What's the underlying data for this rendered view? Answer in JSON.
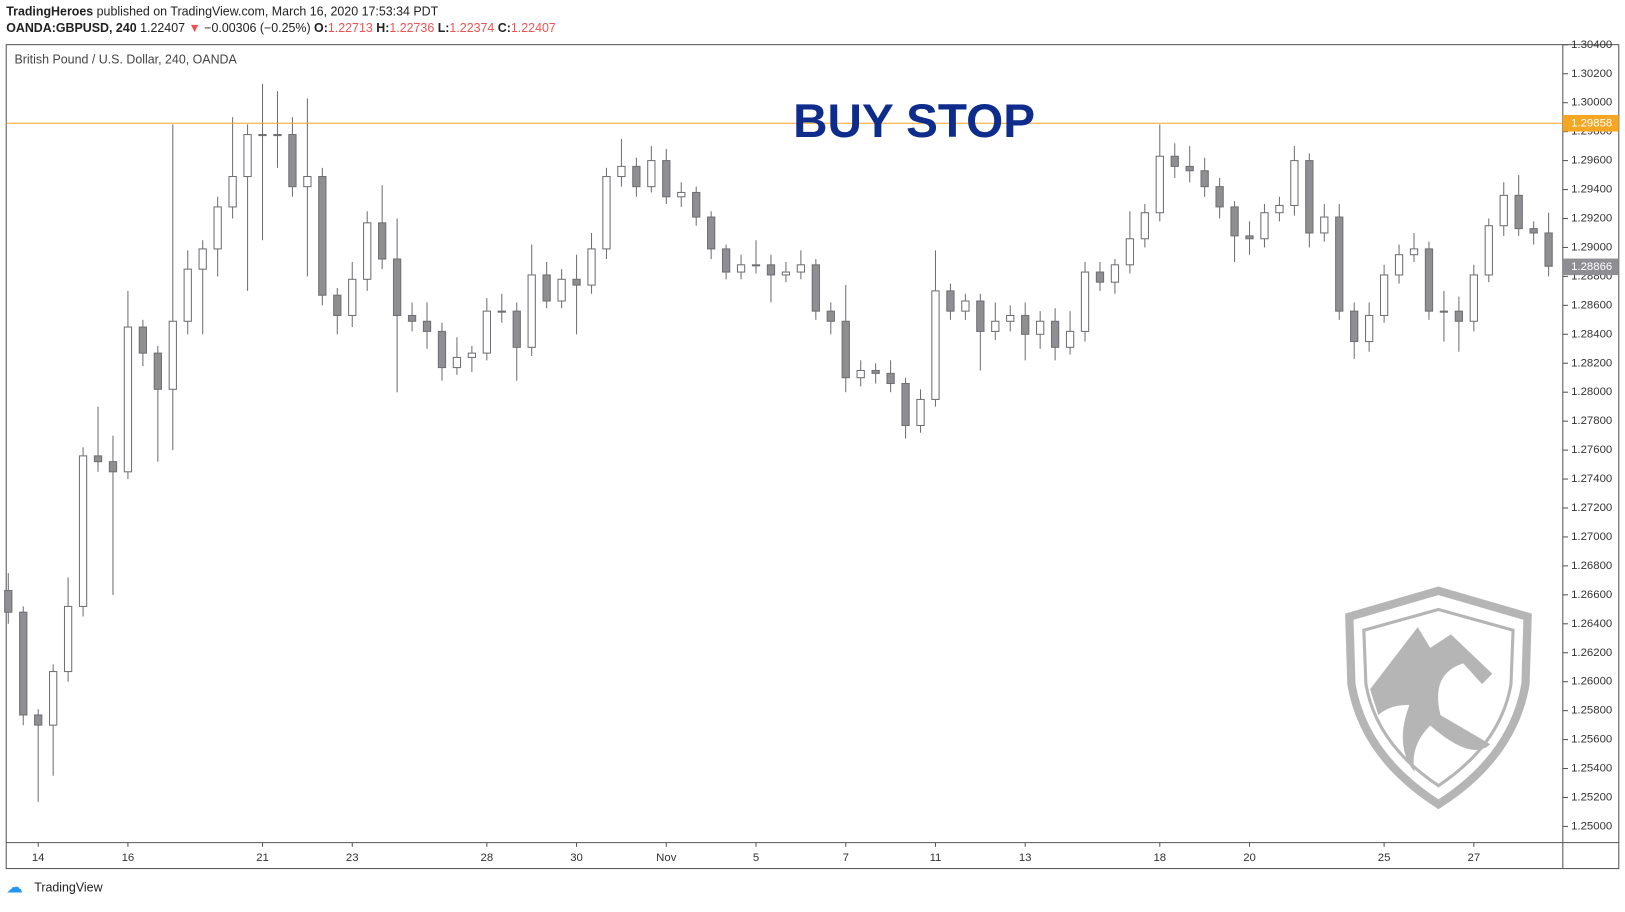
{
  "header": {
    "author": "TradingHeroes",
    "published": "published on TradingView.com, March 16, 2020 17:53:34 PDT",
    "symbol": "OANDA:GBPUSD, 240",
    "price": "1.22407",
    "change_arrow": "▼",
    "change": "−0.00306 (−0.25%)",
    "ohlc": [
      {
        "label": "O:",
        "value": "1.22713"
      },
      {
        "label": "H:",
        "value": "1.22736"
      },
      {
        "label": "L:",
        "value": "1.22374"
      },
      {
        "label": "C:",
        "value": "1.22407"
      }
    ]
  },
  "footer": {
    "brand": "TradingView"
  },
  "chart_data": {
    "type": "candlestick",
    "title": "British Pound / U.S. Dollar, 240, OANDA",
    "annotation": "BUY STOP",
    "up_color": "#ffffff",
    "down_color": "#8e8e93",
    "wick_color": "#6f6f74",
    "grid": false,
    "buy_stop": {
      "value": 1.29858,
      "label": "1.29858",
      "color": "#f5a623"
    },
    "last_price": {
      "value": 1.28866,
      "label": "1.28866",
      "color": "#8e8e93"
    },
    "ylim": [
      1.24888,
      1.30401
    ],
    "yticks": [
      {
        "value": 1.25,
        "label": "1.25000"
      },
      {
        "value": 1.252,
        "label": "1.25200"
      },
      {
        "value": 1.254,
        "label": "1.25400"
      },
      {
        "value": 1.256,
        "label": "1.25600"
      },
      {
        "value": 1.258,
        "label": "1.25800"
      },
      {
        "value": 1.26,
        "label": "1.26000"
      },
      {
        "value": 1.262,
        "label": "1.26200"
      },
      {
        "value": 1.264,
        "label": "1.26400"
      },
      {
        "value": 1.266,
        "label": "1.26600"
      },
      {
        "value": 1.268,
        "label": "1.26800"
      },
      {
        "value": 1.27,
        "label": "1.27000"
      },
      {
        "value": 1.272,
        "label": "1.27200"
      },
      {
        "value": 1.274,
        "label": "1.27400"
      },
      {
        "value": 1.276,
        "label": "1.27600"
      },
      {
        "value": 1.278,
        "label": "1.27800"
      },
      {
        "value": 1.28,
        "label": "1.28000"
      },
      {
        "value": 1.282,
        "label": "1.28200"
      },
      {
        "value": 1.284,
        "label": "1.28400"
      },
      {
        "value": 1.286,
        "label": "1.28600"
      },
      {
        "value": 1.288,
        "label": "1.28800"
      },
      {
        "value": 1.29,
        "label": "1.29000"
      },
      {
        "value": 1.292,
        "label": "1.29200"
      },
      {
        "value": 1.294,
        "label": "1.29400"
      },
      {
        "value": 1.296,
        "label": "1.29600"
      },
      {
        "value": 1.298,
        "label": "1.29800"
      },
      {
        "value": 1.3,
        "label": "1.30000"
      },
      {
        "value": 1.302,
        "label": "1.30200"
      },
      {
        "value": 1.304,
        "label": "1.30400"
      }
    ],
    "categories": [
      null,
      null,
      "14",
      null,
      null,
      null,
      null,
      null,
      "16",
      null,
      null,
      null,
      null,
      null,
      null,
      null,
      null,
      "21",
      null,
      null,
      null,
      null,
      null,
      "23",
      null,
      null,
      null,
      null,
      null,
      null,
      null,
      null,
      "28",
      null,
      null,
      null,
      null,
      null,
      "30",
      null,
      null,
      null,
      null,
      null,
      "Nov",
      null,
      null,
      null,
      null,
      null,
      "5",
      null,
      null,
      null,
      null,
      null,
      "7",
      null,
      null,
      null,
      null,
      null,
      "11",
      null,
      null,
      null,
      null,
      null,
      "13",
      null,
      null,
      null,
      null,
      null,
      null,
      null,
      null,
      "18",
      null,
      null,
      null,
      null,
      null,
      "20",
      null,
      null,
      null,
      null,
      null,
      null,
      null,
      null,
      "25",
      null,
      null,
      null,
      null,
      null,
      "27",
      null,
      null,
      null,
      null,
      null
    ],
    "open": [
      1.2663,
      1.2648,
      1.2577,
      1.257,
      1.2607,
      1.2652,
      1.2756,
      1.2752,
      1.2745,
      1.2845,
      1.2827,
      1.2802,
      1.2849,
      1.2885,
      1.2899,
      1.2928,
      1.2949,
      1.2978,
      1.2978,
      1.2978,
      1.2942,
      1.2949,
      1.2867,
      1.2853,
      1.2878,
      1.2917,
      1.2892,
      1.2853,
      1.2849,
      1.2842,
      1.2817,
      1.2824,
      1.2827,
      1.2856,
      1.2856,
      1.2831,
      1.2881,
      1.2863,
      1.2878,
      1.2874,
      1.2899,
      1.2949,
      1.2956,
      1.2942,
      1.296,
      1.2935,
      1.2938,
      1.2921,
      1.2899,
      1.2883,
      1.2888,
      1.2888,
      1.2881,
      1.2883,
      1.2888,
      1.2856,
      1.2849,
      1.281,
      1.2815,
      1.2813,
      1.2806,
      1.2777,
      1.2795,
      1.287,
      1.2856,
      1.2863,
      1.2842,
      1.2849,
      1.2853,
      1.284,
      1.2849,
      1.2831,
      1.2842,
      1.2883,
      1.2876,
      1.2888,
      1.2906,
      1.2924,
      1.2963,
      1.2956,
      1.2953,
      1.2942,
      1.2928,
      1.2908,
      1.2906,
      1.2924,
      1.2929,
      1.296,
      1.291,
      1.2921,
      1.2856,
      1.2835,
      1.2853,
      1.2881,
      1.2895,
      1.2899,
      1.2856,
      1.2856,
      1.2849,
      1.2881,
      1.2915,
      1.2936,
      1.2913,
      1.291
    ],
    "high": [
      1.2675,
      1.2652,
      1.2581,
      1.2612,
      1.2672,
      1.2762,
      1.279,
      1.277,
      1.287,
      1.285,
      1.2832,
      1.2985,
      1.2898,
      1.2905,
      1.2935,
      1.299,
      1.2985,
      1.3013,
      1.3008,
      1.299,
      1.3003,
      1.2955,
      1.2872,
      1.289,
      1.2925,
      1.2943,
      1.292,
      1.2862,
      1.2862,
      1.2848,
      1.2838,
      1.2832,
      1.2865,
      1.2868,
      1.2862,
      1.2902,
      1.289,
      1.2885,
      1.2895,
      1.291,
      1.2955,
      1.2975,
      1.2962,
      1.297,
      1.2968,
      1.2945,
      1.2942,
      1.2925,
      1.2902,
      1.2895,
      1.2905,
      1.2895,
      1.289,
      1.2898,
      1.2892,
      1.2862,
      1.2874,
      1.2822,
      1.282,
      1.2822,
      1.281,
      1.2802,
      1.2898,
      1.2875,
      1.2868,
      1.2868,
      1.2862,
      1.286,
      1.2862,
      1.2856,
      1.2858,
      1.2856,
      1.289,
      1.289,
      1.2892,
      1.2925,
      1.293,
      1.2985,
      1.2972,
      1.297,
      1.2962,
      1.2948,
      1.2932,
      1.2918,
      1.293,
      1.2935,
      1.297,
      1.2965,
      1.293,
      1.293,
      1.2862,
      1.2862,
      1.2888,
      1.2902,
      1.291,
      1.2904,
      1.287,
      1.2866,
      1.2888,
      1.292,
      1.2945,
      1.295,
      1.2918,
      1.2924
    ],
    "low": [
      1.264,
      1.257,
      1.2517,
      1.2535,
      1.26,
      1.2645,
      1.2745,
      1.266,
      1.274,
      1.2818,
      1.2752,
      1.276,
      1.284,
      1.284,
      1.288,
      1.292,
      1.287,
      1.2905,
      1.2955,
      1.2935,
      1.288,
      1.286,
      1.284,
      1.2845,
      1.287,
      1.2885,
      1.28,
      1.2842,
      1.283,
      1.2808,
      1.2812,
      1.2814,
      1.2822,
      1.2848,
      1.2808,
      1.2825,
      1.2858,
      1.2858,
      1.284,
      1.2868,
      1.2892,
      1.2942,
      1.2935,
      1.2938,
      1.293,
      1.2928,
      1.2915,
      1.2892,
      1.2878,
      1.2878,
      1.2882,
      1.2862,
      1.2876,
      1.2878,
      1.285,
      1.284,
      1.28,
      1.2804,
      1.2806,
      1.28,
      1.2768,
      1.2772,
      1.279,
      1.285,
      1.285,
      1.2815,
      1.2836,
      1.2842,
      1.2822,
      1.283,
      1.2822,
      1.2826,
      1.2835,
      1.287,
      1.2868,
      1.2882,
      1.29,
      1.2918,
      1.2948,
      1.2945,
      1.2935,
      1.292,
      1.289,
      1.2895,
      1.29,
      1.2918,
      1.2922,
      1.29,
      1.2904,
      1.285,
      1.2823,
      1.2828,
      1.2848,
      1.2875,
      1.289,
      1.285,
      1.2835,
      1.2828,
      1.2842,
      1.2876,
      1.2908,
      1.2908,
      1.2902,
      1.288
    ],
    "close": [
      1.2648,
      1.2577,
      1.257,
      1.2607,
      1.2652,
      1.2756,
      1.2752,
      1.2745,
      1.2845,
      1.2827,
      1.2802,
      1.2849,
      1.2885,
      1.2899,
      1.2928,
      1.2949,
      1.2978,
      1.2978,
      1.2978,
      1.2942,
      1.2949,
      1.2867,
      1.2853,
      1.2878,
      1.2917,
      1.2892,
      1.2853,
      1.2849,
      1.2842,
      1.2817,
      1.2824,
      1.2827,
      1.2856,
      1.2856,
      1.2831,
      1.2881,
      1.2863,
      1.2878,
      1.2874,
      1.2899,
      1.2949,
      1.2956,
      1.2942,
      1.296,
      1.2935,
      1.2938,
      1.2921,
      1.2899,
      1.2883,
      1.2888,
      1.2888,
      1.2881,
      1.2883,
      1.2888,
      1.2856,
      1.2849,
      1.281,
      1.2815,
      1.2813,
      1.2806,
      1.2777,
      1.2795,
      1.287,
      1.2856,
      1.2863,
      1.2842,
      1.2849,
      1.2853,
      1.284,
      1.2849,
      1.2831,
      1.2842,
      1.2883,
      1.2876,
      1.2888,
      1.2906,
      1.2924,
      1.2963,
      1.2956,
      1.2953,
      1.2942,
      1.2928,
      1.2908,
      1.2906,
      1.2924,
      1.2929,
      1.296,
      1.291,
      1.2921,
      1.2856,
      1.2835,
      1.2853,
      1.2881,
      1.2895,
      1.2899,
      1.2856,
      1.2856,
      1.2849,
      1.2881,
      1.2915,
      1.2936,
      1.2913,
      1.291,
      1.2887
    ]
  }
}
